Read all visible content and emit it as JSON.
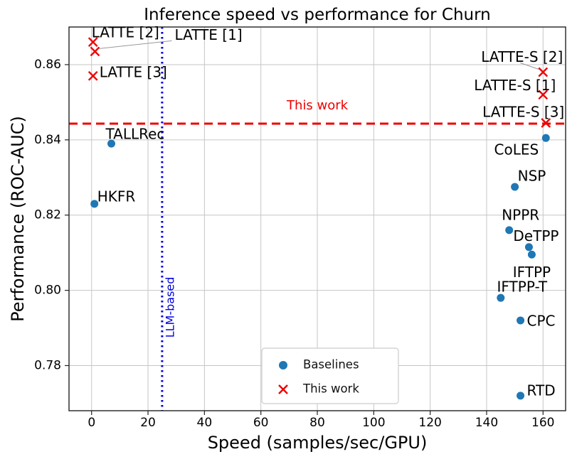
{
  "figure": {
    "title": "Inference speed vs performance for Churn",
    "xlabel": "Speed (samples/sec/GPU)",
    "ylabel": "Performance (ROC-AUC)"
  },
  "chart_data": {
    "type": "scatter",
    "title": "Inference speed vs performance for Churn",
    "xlabel": "Speed (samples/sec/GPU)",
    "ylabel": "Performance (ROC-AUC)",
    "xlim": [
      -8,
      168
    ],
    "ylim": [
      0.768,
      0.87
    ],
    "xticks": [
      0,
      20,
      40,
      60,
      80,
      100,
      120,
      140,
      160
    ],
    "yticks": [
      0.78,
      0.8,
      0.82,
      0.84,
      0.86
    ],
    "grid": true,
    "legend": {
      "position": "lower center",
      "entries": [
        {
          "label": "Baselines",
          "marker": "circle",
          "color": "#1f77b4"
        },
        {
          "label": "This work",
          "marker": "x",
          "color": "#ee0000"
        }
      ]
    },
    "series": [
      {
        "name": "Baselines",
        "marker": "circle",
        "color": "#1f77b4",
        "points": [
          {
            "label": "TALLRec",
            "x": 7,
            "y": 0.839,
            "dx": -8,
            "dy": -12,
            "anchor": "start"
          },
          {
            "label": "HKFR",
            "x": 1,
            "y": 0.823,
            "dx": 4,
            "dy": -9,
            "anchor": "start"
          },
          {
            "label": "CoLES",
            "x": 161,
            "y": 0.8405,
            "dx": -10,
            "dy": 18,
            "anchor": "end"
          },
          {
            "label": "NSP",
            "x": 150,
            "y": 0.8275,
            "dx": 4,
            "dy": -14,
            "anchor": "start"
          },
          {
            "label": "NPPR",
            "x": 148,
            "y": 0.816,
            "dx": 16,
            "dy": -20,
            "anchor": "middle"
          },
          {
            "label": "DeTPP",
            "x": 155,
            "y": 0.8115,
            "dx": 10,
            "dy": -14,
            "anchor": "middle"
          },
          {
            "label": "IFTPP",
            "x": 156,
            "y": 0.8095,
            "dx": 0,
            "dy": 26,
            "anchor": "middle"
          },
          {
            "label": "IFTPP-T",
            "x": 145,
            "y": 0.798,
            "dx": 30,
            "dy": -14,
            "anchor": "middle"
          },
          {
            "label": "CPC",
            "x": 152,
            "y": 0.792,
            "dx": 9,
            "dy": 2,
            "anchor": "start"
          },
          {
            "label": "RTD",
            "x": 152,
            "y": 0.772,
            "dx": 9,
            "dy": -6,
            "anchor": "start"
          }
        ]
      },
      {
        "name": "This work",
        "marker": "x",
        "color": "#ee0000",
        "points": [
          {
            "label": "LATTE [2]",
            "x": 0.5,
            "y": 0.866,
            "dx": -2,
            "dy": -12,
            "anchor": "start"
          },
          {
            "label": "LATTE [1]",
            "x": 1.2,
            "y": 0.8635,
            "dx": 112,
            "dy": -22,
            "anchor": "start",
            "leader": true
          },
          {
            "label": "LATTE [3]",
            "x": 0.5,
            "y": 0.857,
            "dx": 9,
            "dy": -4,
            "anchor": "start"
          },
          {
            "label": "LATTE-S [2]",
            "x": 160,
            "y": 0.858,
            "dx": 28,
            "dy": -20,
            "anchor": "end",
            "leader": true
          },
          {
            "label": "LATTE-S [1]",
            "x": 160,
            "y": 0.852,
            "dx": 18,
            "dy": -12,
            "anchor": "end"
          },
          {
            "label": "LATTE-S [3]",
            "x": 161,
            "y": 0.8445,
            "dx": 26,
            "dy": -14,
            "anchor": "end"
          }
        ]
      }
    ],
    "hline": {
      "y": 0.8443,
      "color": "#ee0000",
      "dash": "dashed",
      "label": "This work",
      "label_x": 80,
      "label_y": 0.849
    },
    "vline": {
      "x": 25,
      "color": "#0000dd",
      "dash": "dotted",
      "label": "LLM-based",
      "label_x": 28,
      "label_y": 0.7955
    }
  }
}
